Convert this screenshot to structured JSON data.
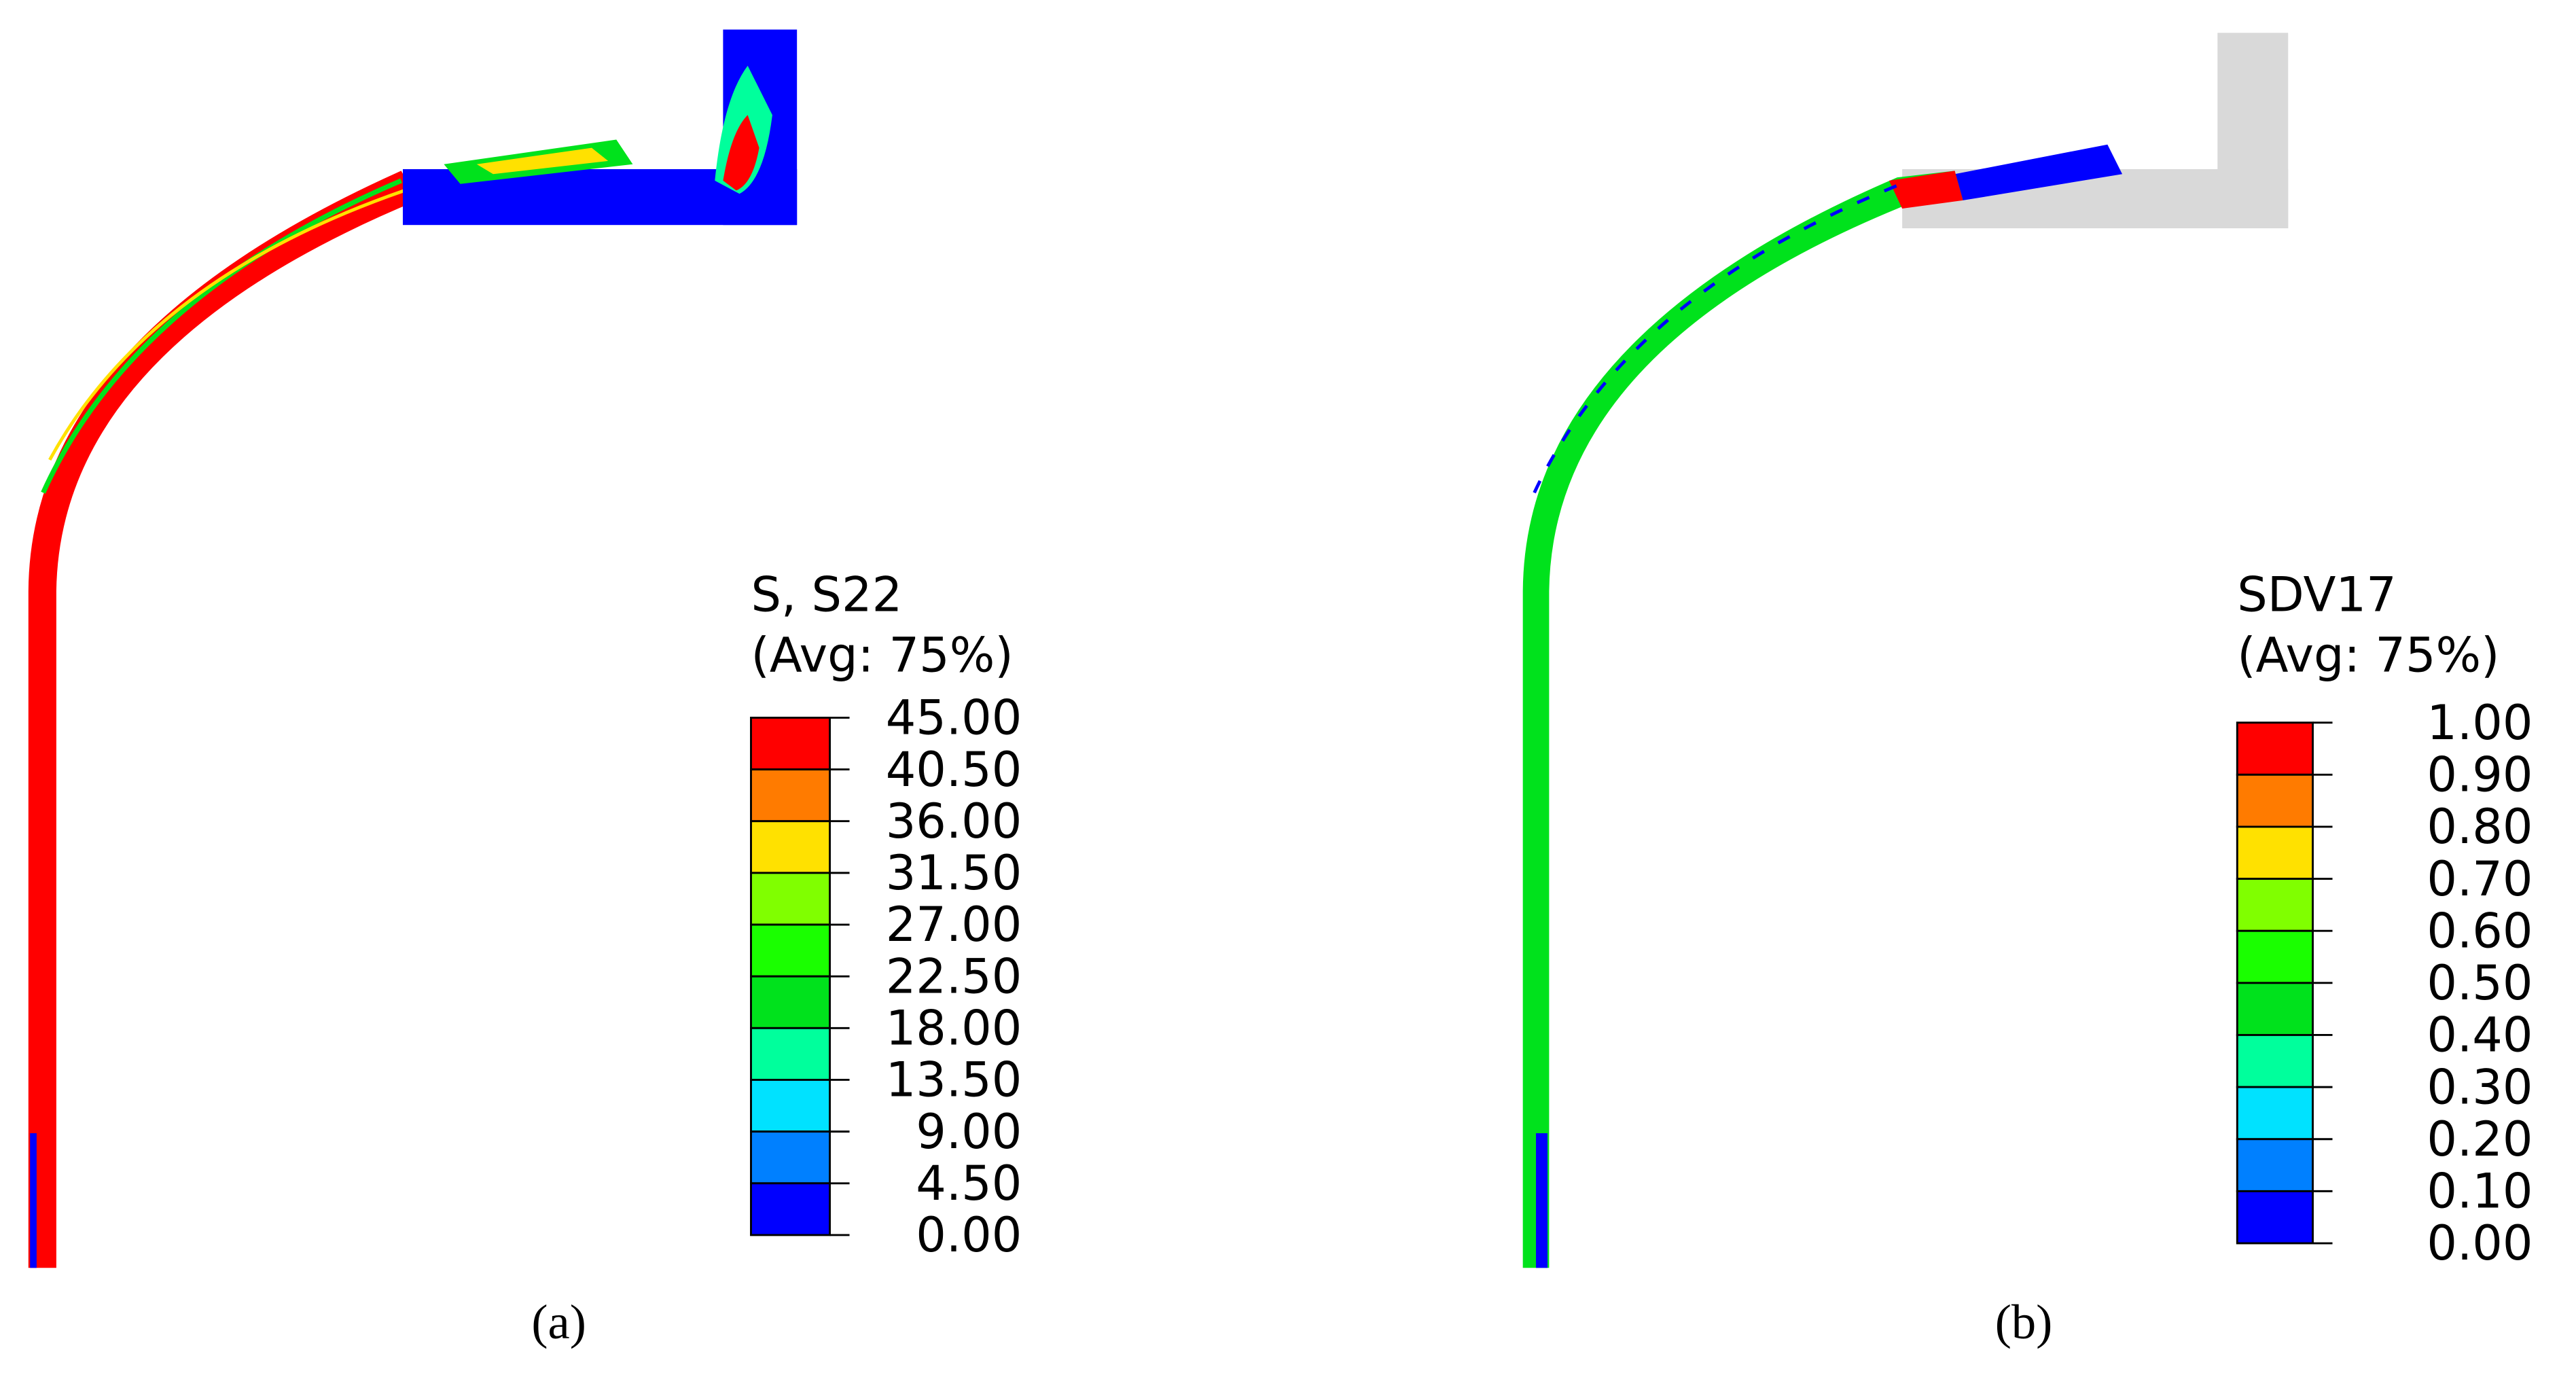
{
  "panels": [
    {
      "legend_title": [
        "S, S22",
        "(Avg: 75%)"
      ],
      "legend_labels": [
        "45.00",
        "40.50",
        "36.00",
        "31.50",
        "27.00",
        "22.50",
        "18.00",
        "13.50",
        "9.00",
        "4.50",
        "0.00"
      ],
      "caption": "(a)"
    },
    {
      "legend_title": [
        "SDV17",
        "(Avg: 75%)"
      ],
      "legend_labels": [
        "1.00",
        "0.90",
        "0.80",
        "0.70",
        "0.60",
        "0.50",
        "0.40",
        "0.30",
        "0.20",
        "0.10",
        "0.00"
      ],
      "caption": "(b)"
    }
  ],
  "band_colors": [
    "#ff0000",
    "#ff7b00",
    "#ffe100",
    "#80ff00",
    "#1aff00",
    "#00e21c",
    "#00ff9c",
    "#00e2ff",
    "#0080ff",
    "#0000ff"
  ]
}
